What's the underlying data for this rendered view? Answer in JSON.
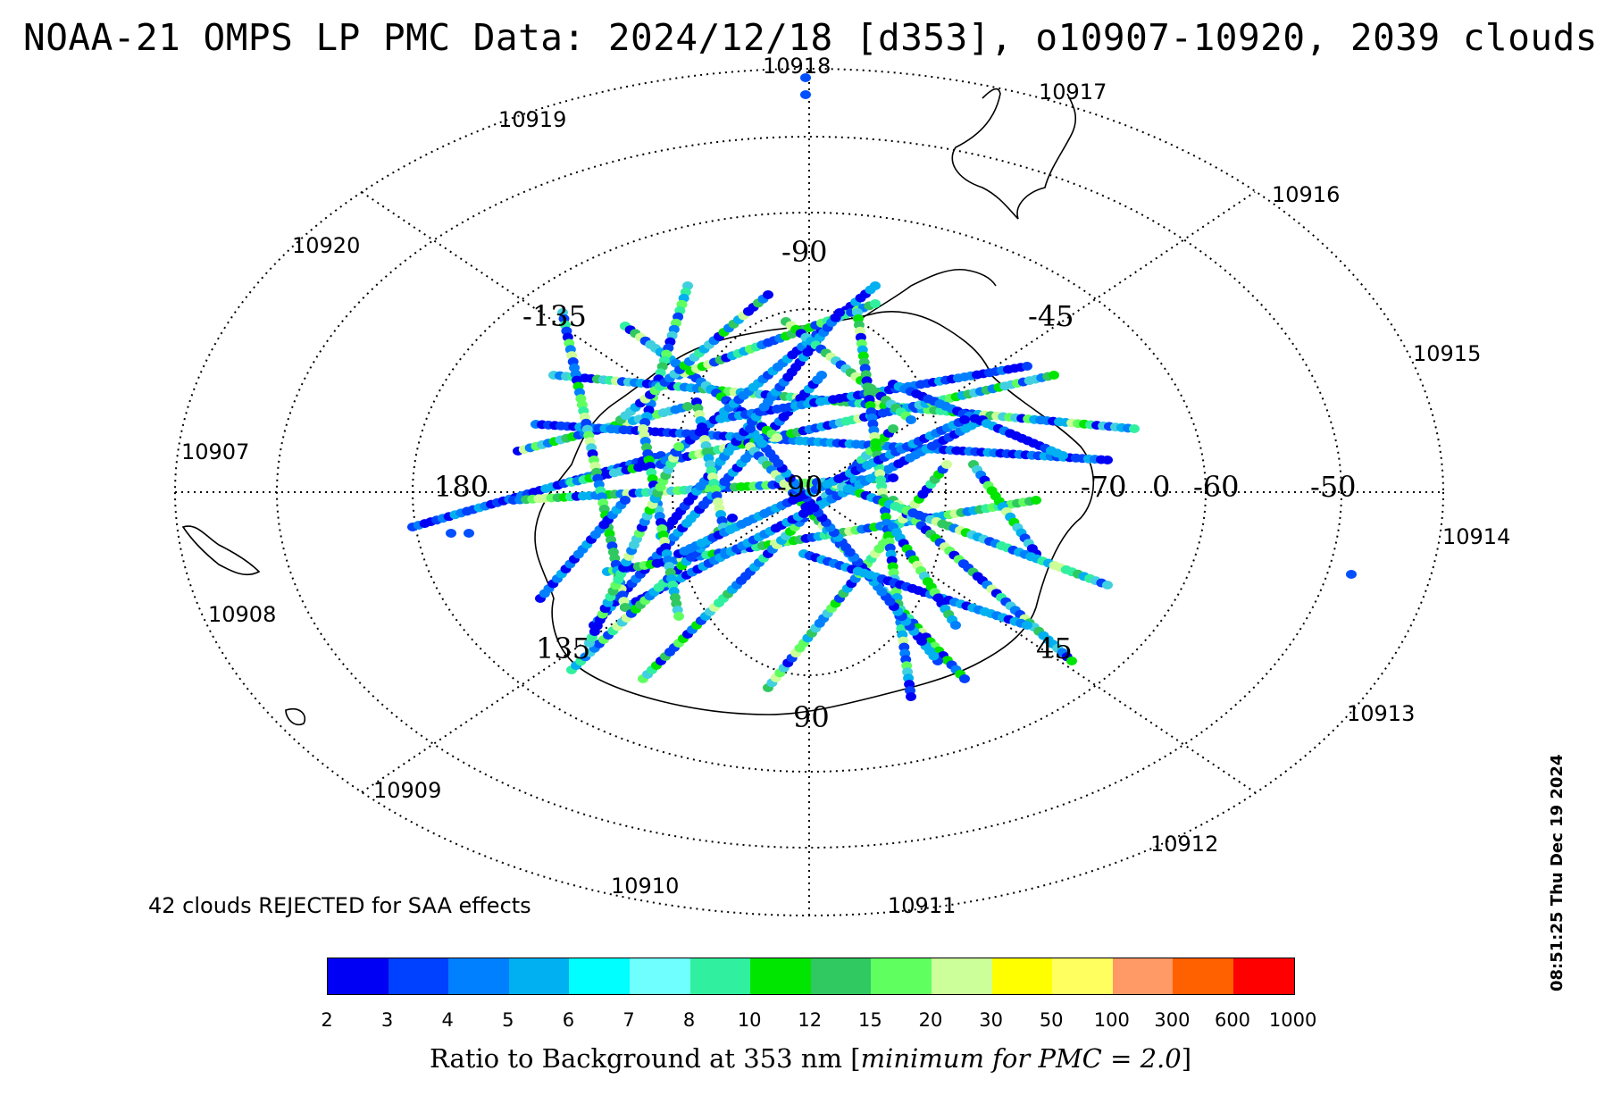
{
  "title": "NOAA-21 OMPS LP PMC Data: 2024/12/18 [d353], o10907-10920, 2039 clouds",
  "rejected_note": "42 clouds REJECTED for SAA effects",
  "timestamp": "08:51:25 Thu Dec 19 2024",
  "colorbar": {
    "title_prefix": "Ratio to Background at 353 nm [",
    "title_italic": "minimum for PMC = 2.0",
    "title_suffix": "]",
    "labels": [
      "2",
      "3",
      "4",
      "5",
      "6",
      "7",
      "8",
      "10",
      "12",
      "15",
      "20",
      "30",
      "50",
      "100",
      "300",
      "600",
      "1000"
    ],
    "colors": [
      "#0000f5",
      "#0040ff",
      "#0080ff",
      "#00b0f0",
      "#00ffff",
      "#70ffff",
      "#30f0a0",
      "#00e600",
      "#30c860",
      "#60ff60",
      "#ccff99",
      "#ffff00",
      "#ffff60",
      "#ff9966",
      "#ff6000",
      "#ff0000"
    ]
  },
  "orbit_labels": [
    "10907",
    "10908",
    "10909",
    "10910",
    "10911",
    "10912",
    "10913",
    "10914",
    "10915",
    "10916",
    "10917",
    "10918",
    "10919",
    "10920"
  ],
  "grid_labels": {
    "lon_top": "-90",
    "lon_upper_left": "-135",
    "lon_upper_right": "-45",
    "lon_left": "180",
    "lon_lower_left": "135",
    "lon_lower_right": "45",
    "lon_bottom": "90",
    "lat_center": "-90",
    "lat_row": [
      "-70",
      "0",
      "-60",
      "-50"
    ]
  },
  "chart_data": {
    "type": "scatter",
    "title": "NOAA-21 OMPS LP PMC Data: 2024/12/18 [d353], o10907-10920, 2039 clouds",
    "projection": "south polar stereographic",
    "lat_circles": [
      -80,
      -70,
      -60,
      -50
    ],
    "meridians": [
      0,
      45,
      90,
      135,
      180,
      -135,
      -90,
      -45
    ],
    "orbits": [
      10907,
      10908,
      10909,
      10910,
      10911,
      10912,
      10913,
      10914,
      10915,
      10916,
      10917,
      10918,
      10919,
      10920
    ],
    "cloud_count": 2039,
    "rejected": 42,
    "colorbar_min_ratio": 2.0,
    "colorbar_label": "Ratio to Background at 353 nm"
  }
}
